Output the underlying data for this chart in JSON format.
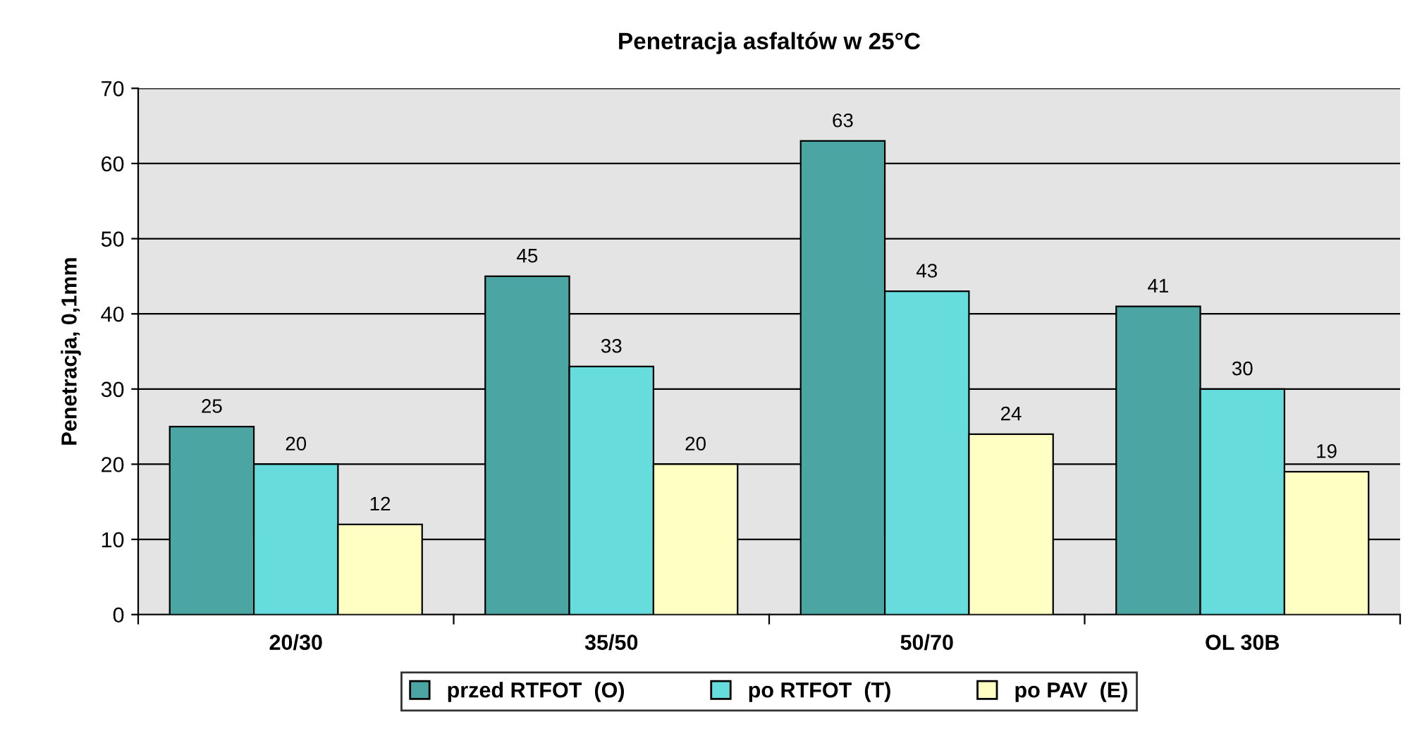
{
  "chart_data": {
    "type": "bar",
    "title": "Penetracja asfaltów w 25°C",
    "ylabel": "Penetracja, 0,1mm",
    "categories": [
      "20/30",
      "35/50",
      "50/70",
      "OL 30B"
    ],
    "series": [
      {
        "name": "przed RTFOT  (O)",
        "color": "#4aa5a3",
        "values": [
          25,
          45,
          63,
          41
        ]
      },
      {
        "name": "po RTFOT  (T)",
        "color": "#66dcdc",
        "values": [
          20,
          33,
          43,
          30
        ]
      },
      {
        "name": "po PAV  (E)",
        "color": "#ffffc4",
        "values": [
          12,
          20,
          24,
          19
        ]
      }
    ],
    "ylim": [
      0,
      70
    ],
    "yticks": [
      0,
      10,
      20,
      30,
      40,
      50,
      60,
      70
    ],
    "grid": "y",
    "legend": "bottom",
    "data_labels": true
  }
}
